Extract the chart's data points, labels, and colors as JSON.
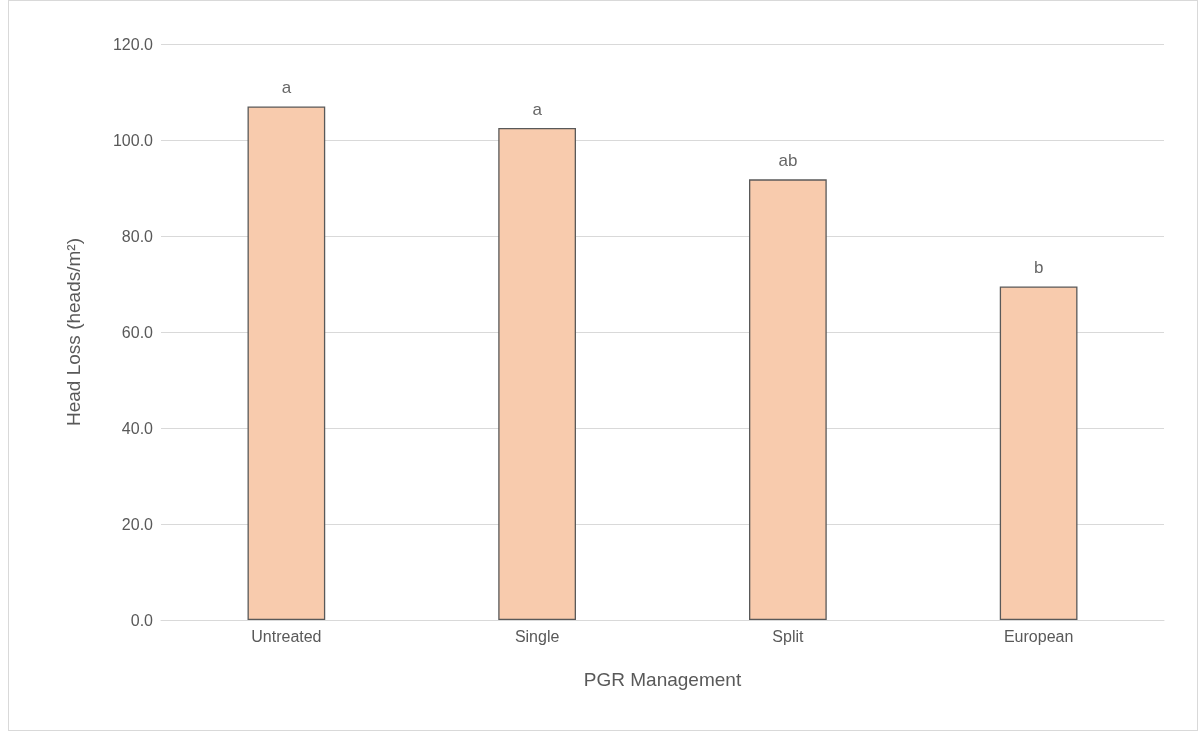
{
  "chart_data": {
    "type": "bar",
    "xlabel": "PGR Management",
    "ylabel": "Head Loss (heads/m²)",
    "categories": [
      "Untreated",
      "Single",
      "Split",
      "European"
    ],
    "values": [
      107.0,
      102.5,
      91.8,
      69.5
    ],
    "color": "#f8cbad",
    "ylim": [
      0,
      120
    ],
    "yticks": [
      {
        "value": 0,
        "label": "0.0"
      },
      {
        "value": 20,
        "label": "20.0"
      },
      {
        "value": 40,
        "label": "40.0"
      },
      {
        "value": 60,
        "label": "60.0"
      },
      {
        "value": 80,
        "label": "80.0"
      },
      {
        "value": 100,
        "label": "100.0"
      },
      {
        "value": 120,
        "label": "120.0"
      }
    ],
    "grid": "y",
    "annotations": [
      {
        "text": "a",
        "x": "Untreated",
        "y": 107.0
      },
      {
        "text": "a",
        "x": "Single",
        "y": 102.5
      },
      {
        "text": "ab",
        "x": "Split",
        "y": 91.8
      },
      {
        "text": "b",
        "x": "European",
        "y": 69.5
      }
    ]
  }
}
